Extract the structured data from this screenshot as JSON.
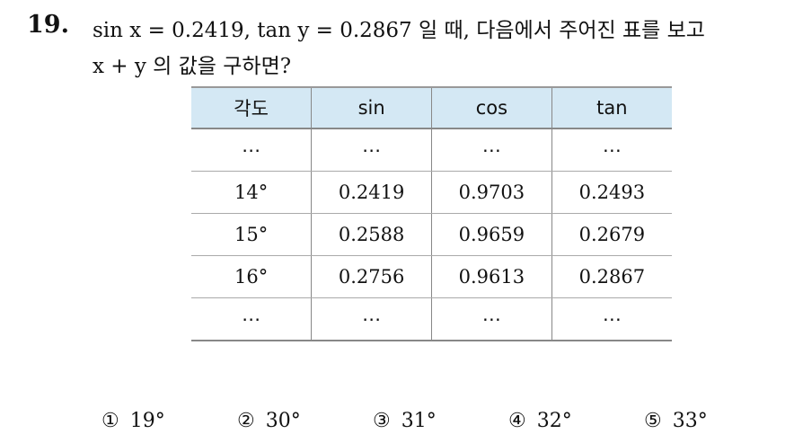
{
  "question": {
    "number": "19.",
    "lines": [
      "sin x = 0.2419,  tan y = 0.2867 일 때, 다음에서 주어진 표를 보고",
      "x + y 의 값을 구하면?"
    ]
  },
  "table": {
    "header": [
      "각도",
      "sin",
      "cos",
      "tan"
    ],
    "rows": [
      [
        "⋯",
        "⋯",
        "⋯",
        "⋯"
      ],
      [
        "14°",
        "0.2419",
        "0.9703",
        "0.2493"
      ],
      [
        "15°",
        "0.2588",
        "0.9659",
        "0.2679"
      ],
      [
        "16°",
        "0.2756",
        "0.9613",
        "0.2867"
      ],
      [
        "⋯",
        "⋯",
        "⋯",
        "⋯"
      ]
    ]
  },
  "choices": [
    {
      "marker": "①",
      "text": "19°"
    },
    {
      "marker": "②",
      "text": "30°"
    },
    {
      "marker": "③",
      "text": "31°"
    },
    {
      "marker": "④",
      "text": "32°"
    },
    {
      "marker": "⑤",
      "text": "33°"
    }
  ]
}
